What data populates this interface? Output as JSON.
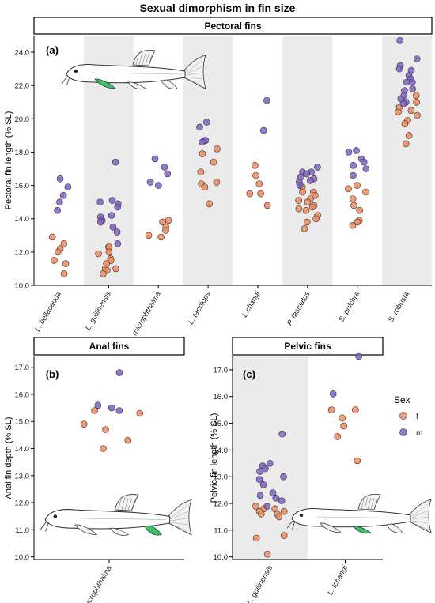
{
  "figure": {
    "title": "Sexual dimorphism in fin size"
  },
  "legend": {
    "title": "Sex",
    "entries": [
      {
        "label": "f",
        "color": "#f08a5d"
      },
      {
        "label": "m",
        "color": "#8062c4"
      }
    ]
  },
  "colors": {
    "f": "#f08a5d",
    "m": "#8062c4",
    "band": "#ebebeb",
    "fin_highlight": "#3cc36a"
  },
  "chart_data": [
    {
      "type": "scatter",
      "panel_title": "Pectoral fins",
      "tag": "(a)",
      "ylabel": "Pectoral fin length (% SL)",
      "ylim": [
        10,
        25
      ],
      "yticks": [
        "10.0",
        "12.0",
        "14.0",
        "16.0",
        "18.0",
        "20.0",
        "22.0",
        "24.0"
      ],
      "categories": [
        "L. bellacauda",
        "L. guilinensis",
        "L. microphthalma",
        "L. taeniops",
        "L.changi",
        "P. fasciatus",
        "S. pulchra",
        "S. robusta"
      ],
      "shaded_categories": [
        1,
        3,
        5,
        7
      ],
      "illustration": "fish-pectoral-fin-icon",
      "series": [
        {
          "name": "f",
          "points": [
            [
              0,
              12.9
            ],
            [
              0,
              12.5
            ],
            [
              0,
              12.2
            ],
            [
              0,
              12.0
            ],
            [
              0,
              11.5
            ],
            [
              0,
              11.3
            ],
            [
              0,
              10.7
            ],
            [
              1,
              12.3
            ],
            [
              1,
              12.3
            ],
            [
              1,
              12.0
            ],
            [
              1,
              11.9
            ],
            [
              1,
              11.6
            ],
            [
              1,
              11.5
            ],
            [
              1,
              11.3
            ],
            [
              1,
              11.0
            ],
            [
              1,
              11.0
            ],
            [
              1,
              10.9
            ],
            [
              1,
              10.7
            ],
            [
              2,
              13.9
            ],
            [
              2,
              13.8
            ],
            [
              2,
              13.5
            ],
            [
              2,
              13.3
            ],
            [
              2,
              13.0
            ],
            [
              2,
              12.9
            ],
            [
              3,
              18.2
            ],
            [
              3,
              17.9
            ],
            [
              3,
              17.4
            ],
            [
              3,
              16.8
            ],
            [
              3,
              16.2
            ],
            [
              3,
              16.1
            ],
            [
              3,
              15.9
            ],
            [
              3,
              14.9
            ],
            [
              4,
              17.2
            ],
            [
              4,
              16.6
            ],
            [
              4,
              16.1
            ],
            [
              4,
              15.5
            ],
            [
              4,
              15.5
            ],
            [
              4,
              14.8
            ],
            [
              5,
              15.9
            ],
            [
              5,
              15.6
            ],
            [
              5,
              15.6
            ],
            [
              5,
              15.4
            ],
            [
              5,
              15.2
            ],
            [
              5,
              15.1
            ],
            [
              5,
              15.0
            ],
            [
              5,
              14.8
            ],
            [
              5,
              14.7
            ],
            [
              5,
              14.6
            ],
            [
              5,
              14.5
            ],
            [
              5,
              14.2
            ],
            [
              5,
              14.0
            ],
            [
              5,
              13.8
            ],
            [
              5,
              13.4
            ],
            [
              6,
              16.0
            ],
            [
              6,
              15.8
            ],
            [
              6,
              15.6
            ],
            [
              6,
              15.2
            ],
            [
              6,
              14.8
            ],
            [
              6,
              14.5
            ],
            [
              6,
              13.9
            ],
            [
              6,
              13.8
            ],
            [
              6,
              13.6
            ],
            [
              7,
              21.4
            ],
            [
              7,
              21.0
            ],
            [
              7,
              20.7
            ],
            [
              7,
              20.5
            ],
            [
              7,
              20.4
            ],
            [
              7,
              20.2
            ],
            [
              7,
              19.9
            ],
            [
              7,
              19.7
            ],
            [
              7,
              19.0
            ],
            [
              7,
              18.5
            ]
          ]
        },
        {
          "name": "m",
          "points": [
            [
              0,
              16.4
            ],
            [
              0,
              15.9
            ],
            [
              0,
              15.4
            ],
            [
              0,
              15.0
            ],
            [
              0,
              14.5
            ],
            [
              1,
              17.4
            ],
            [
              1,
              15.1
            ],
            [
              1,
              15.0
            ],
            [
              1,
              14.9
            ],
            [
              1,
              14.7
            ],
            [
              1,
              14.2
            ],
            [
              1,
              14.1
            ],
            [
              1,
              13.9
            ],
            [
              1,
              13.8
            ],
            [
              1,
              13.5
            ],
            [
              1,
              13.2
            ],
            [
              1,
              12.5
            ],
            [
              2,
              17.6
            ],
            [
              2,
              17.1
            ],
            [
              2,
              16.7
            ],
            [
              2,
              16.2
            ],
            [
              2,
              16.0
            ],
            [
              3,
              19.8
            ],
            [
              3,
              19.5
            ],
            [
              3,
              18.7
            ],
            [
              3,
              18.7
            ],
            [
              3,
              18.6
            ],
            [
              4,
              21.1
            ],
            [
              4,
              19.3
            ],
            [
              5,
              17.1
            ],
            [
              5,
              16.8
            ],
            [
              5,
              16.8
            ],
            [
              5,
              16.7
            ],
            [
              5,
              16.5
            ],
            [
              5,
              16.4
            ],
            [
              5,
              16.3
            ],
            [
              5,
              16.2
            ],
            [
              5,
              16.0
            ],
            [
              6,
              18.1
            ],
            [
              6,
              18.0
            ],
            [
              6,
              17.6
            ],
            [
              6,
              17.4
            ],
            [
              6,
              17.2
            ],
            [
              6,
              17.0
            ],
            [
              6,
              16.6
            ],
            [
              7,
              24.7
            ],
            [
              7,
              23.6
            ],
            [
              7,
              23.2
            ],
            [
              7,
              23.0
            ],
            [
              7,
              22.9
            ],
            [
              7,
              22.6
            ],
            [
              7,
              22.4
            ],
            [
              7,
              22.2
            ],
            [
              7,
              22.2
            ],
            [
              7,
              21.8
            ],
            [
              7,
              21.7
            ],
            [
              7,
              21.4
            ],
            [
              7,
              21.2
            ],
            [
              7,
              21.0
            ],
            [
              7,
              20.9
            ]
          ]
        }
      ]
    },
    {
      "type": "scatter",
      "panel_title": "Anal fins",
      "tag": "(b)",
      "ylabel": "Anal fin depth (% SL)",
      "ylim": [
        9.9,
        17.4
      ],
      "yticks": [
        "10.0",
        "11.0",
        "12.0",
        "13.0",
        "14.0",
        "15.0",
        "16.0",
        "17.0"
      ],
      "categories": [
        "L. microphthalma"
      ],
      "shaded_categories": [],
      "illustration": "fish-anal-fin-icon",
      "series": [
        {
          "name": "f",
          "points": [
            [
              0,
              15.4
            ],
            [
              0,
              15.3
            ],
            [
              0,
              14.9
            ],
            [
              0,
              14.7
            ],
            [
              0,
              14.3
            ],
            [
              0,
              14.0
            ]
          ]
        },
        {
          "name": "m",
          "points": [
            [
              0,
              16.8
            ],
            [
              0,
              15.6
            ],
            [
              0,
              15.5
            ],
            [
              0,
              15.4
            ]
          ]
        }
      ]
    },
    {
      "type": "scatter",
      "panel_title": "Pelvic fins",
      "tag": "(c)",
      "ylabel": "Pelvic fin length (% SL)",
      "ylim": [
        9.9,
        17.5
      ],
      "yticks": [
        "10.0",
        "11.0",
        "12.0",
        "13.0",
        "14.0",
        "15.0",
        "16.0",
        "17.0"
      ],
      "categories": [
        "L. guilinensis",
        "L. tchangi"
      ],
      "shaded_categories": [
        0
      ],
      "illustration": "fish-pelvic-fin-icon",
      "series": [
        {
          "name": "f",
          "points": [
            [
              0,
              11.9
            ],
            [
              0,
              11.8
            ],
            [
              0,
              11.8
            ],
            [
              0,
              11.7
            ],
            [
              0,
              11.7
            ],
            [
              0,
              11.6
            ],
            [
              0,
              11.6
            ],
            [
              0,
              11.5
            ],
            [
              0,
              10.8
            ],
            [
              0,
              10.7
            ],
            [
              0,
              10.1
            ],
            [
              1,
              15.5
            ],
            [
              1,
              15.5
            ],
            [
              1,
              15.2
            ],
            [
              1,
              14.9
            ],
            [
              1,
              14.5
            ],
            [
              1,
              13.6
            ]
          ]
        },
        {
          "name": "m",
          "points": [
            [
              0,
              14.6
            ],
            [
              0,
              13.5
            ],
            [
              0,
              13.4
            ],
            [
              0,
              13.3
            ],
            [
              0,
              13.2
            ],
            [
              0,
              13.0
            ],
            [
              0,
              12.9
            ],
            [
              0,
              12.7
            ],
            [
              0,
              12.4
            ],
            [
              0,
              12.3
            ],
            [
              0,
              12.2
            ],
            [
              0,
              12.1
            ],
            [
              0,
              11.9
            ],
            [
              1,
              17.5
            ],
            [
              1,
              16.1
            ]
          ]
        }
      ]
    }
  ]
}
